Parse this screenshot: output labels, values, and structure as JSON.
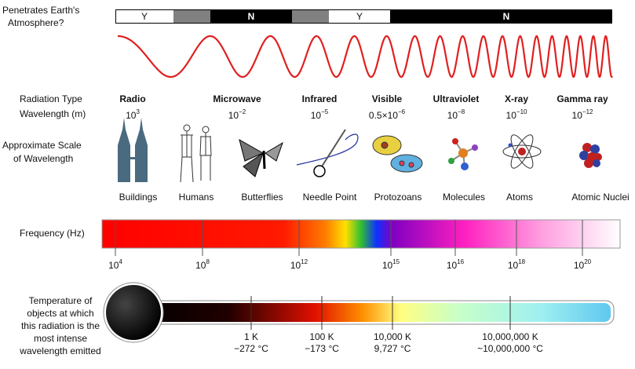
{
  "atmosphere": {
    "label": [
      "Penetrates Earth's",
      "Atmosphere?"
    ],
    "segments": [
      "Y",
      "N",
      "Y",
      "N"
    ]
  },
  "radiation": {
    "type_label": "Radiation Type",
    "wavelength_label": "Wavelength (m)",
    "types": [
      {
        "name": "Radio",
        "base": "10",
        "exp": "3"
      },
      {
        "name": "Microwave",
        "base": "10",
        "exp": "−2"
      },
      {
        "name": "Infrared",
        "base": "10",
        "exp": "−5"
      },
      {
        "name": "Visible",
        "base": "0.5×10",
        "exp": "−6"
      },
      {
        "name": "Ultraviolet",
        "base": "10",
        "exp": "−8"
      },
      {
        "name": "X-ray",
        "base": "10",
        "exp": "−10"
      },
      {
        "name": "Gamma ray",
        "base": "10",
        "exp": "−12"
      }
    ]
  },
  "scale": {
    "label": [
      "Approximate Scale",
      "of Wavelength"
    ],
    "items": [
      "Buildings",
      "Humans",
      "Butterflies",
      "Needle Point",
      "Protozoans",
      "Molecules",
      "Atoms",
      "Atomic Nuclei"
    ]
  },
  "frequency": {
    "label": "Frequency (Hz)",
    "ticks": [
      {
        "base": "10",
        "exp": "4"
      },
      {
        "base": "10",
        "exp": "8"
      },
      {
        "base": "10",
        "exp": "12"
      },
      {
        "base": "10",
        "exp": "15"
      },
      {
        "base": "10",
        "exp": "16"
      },
      {
        "base": "10",
        "exp": "18"
      },
      {
        "base": "10",
        "exp": "20"
      }
    ]
  },
  "temperature": {
    "label": [
      "Temperature of",
      "objects at which",
      "this radiation is the",
      "most intense",
      "wavelength emitted"
    ],
    "ticks": [
      {
        "kelvin": "1 K",
        "celsius": "−272 °C"
      },
      {
        "kelvin": "100 K",
        "celsius": "−173 °C"
      },
      {
        "kelvin": "10,000 K",
        "celsius": "9,727 °C"
      },
      {
        "kelvin": "10,000,000 K",
        "celsius": "~10,000,000 °C"
      }
    ]
  }
}
